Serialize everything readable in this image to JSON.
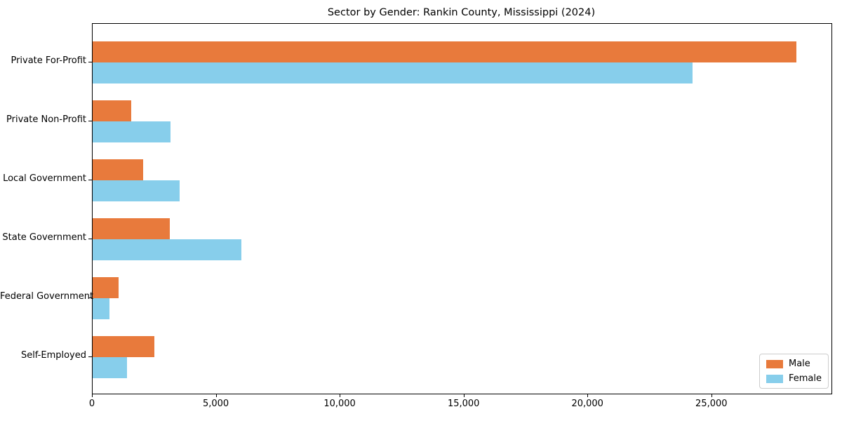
{
  "chart_data": {
    "type": "bar",
    "orientation": "horizontal",
    "title": "Sector by Gender: Rankin County, Mississippi (2024)",
    "categories": [
      "Private For-Profit",
      "Private Non-Profit",
      "Local Government",
      "State Government",
      "Federal Government",
      "Self-Employed"
    ],
    "series": [
      {
        "name": "Male",
        "color": "#E87A3C",
        "values": [
          28400,
          1550,
          2050,
          3100,
          1050,
          2500
        ]
      },
      {
        "name": "Female",
        "color": "#87CEEB",
        "values": [
          24200,
          3150,
          3500,
          6000,
          680,
          1390
        ]
      }
    ],
    "xlabel": "",
    "ylabel": "",
    "xlim": [
      0,
      29820
    ],
    "xticks": [
      0,
      5000,
      10000,
      15000,
      20000,
      25000
    ],
    "xtick_labels": [
      "0",
      "5,000",
      "10,000",
      "15,000",
      "20,000",
      "25,000"
    ],
    "grid": false,
    "legend_position": "lower right",
    "text_color": "#000000",
    "spine_color": "#000000",
    "background_color": "#ffffff"
  }
}
